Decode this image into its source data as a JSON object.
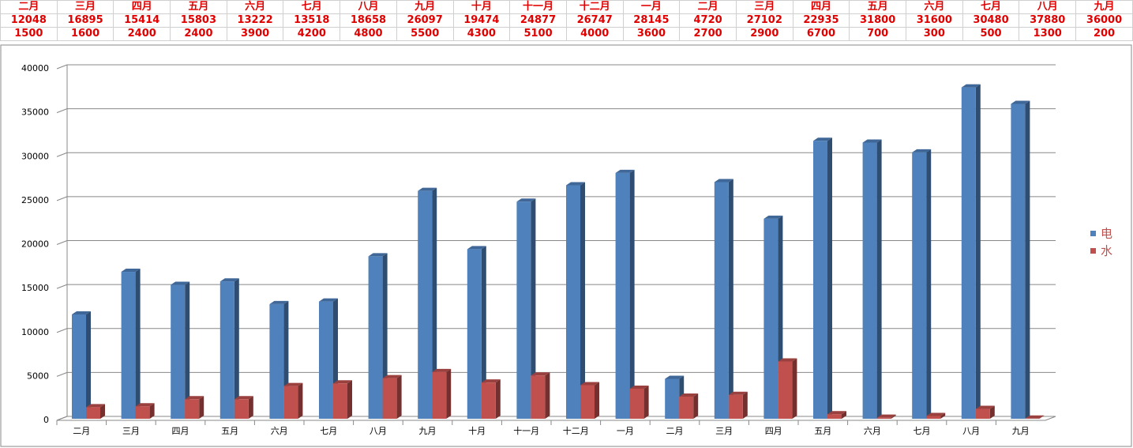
{
  "chart_data": {
    "type": "bar3d",
    "categories": [
      "二月",
      "三月",
      "四月",
      "五月",
      "六月",
      "七月",
      "八月",
      "九月",
      "十月",
      "十一月",
      "十二月",
      "一月",
      "二月",
      "三月",
      "四月",
      "五月",
      "六月",
      "七月",
      "八月",
      "九月"
    ],
    "series": [
      {
        "name": "电",
        "color": "#4f81bd",
        "values": [
          12048,
          16895,
          15414,
          15803,
          13222,
          13518,
          18658,
          26097,
          19474,
          24877,
          26747,
          28145,
          4720,
          27102,
          22935,
          31800,
          31600,
          30480,
          37880,
          36000
        ]
      },
      {
        "name": "水",
        "color": "#c0504d",
        "values": [
          1500,
          1600,
          2400,
          2400,
          3900,
          4200,
          4800,
          5500,
          4300,
          5100,
          4000,
          3600,
          2700,
          2900,
          6700,
          700,
          300,
          500,
          1300,
          200
        ]
      }
    ],
    "ylim": [
      0,
      40000
    ],
    "yticks": [
      0,
      5000,
      10000,
      15000,
      20000,
      25000,
      30000,
      35000,
      40000
    ],
    "grid": true,
    "legend": "right"
  }
}
